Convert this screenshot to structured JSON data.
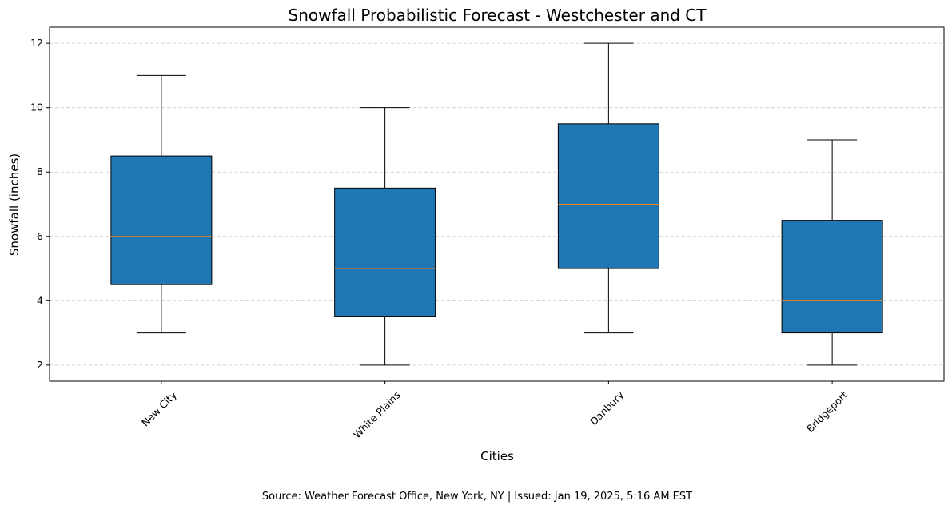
{
  "chart_data": {
    "type": "box",
    "title": "Snowfall Probabilistic Forecast - Westchester and CT",
    "xlabel": "Cities",
    "ylabel": "Snowfall (inches)",
    "ylim": [
      1.5,
      12.5
    ],
    "yticks": [
      2,
      4,
      6,
      8,
      10,
      12
    ],
    "grid": "y-dashed",
    "categories": [
      "New City",
      "White Plains",
      "Danbury",
      "Bridgeport"
    ],
    "boxes": [
      {
        "min": 3,
        "q1": 4.5,
        "median": 6,
        "q3": 8.5,
        "max": 11
      },
      {
        "min": 2,
        "q1": 3.5,
        "median": 5,
        "q3": 7.5,
        "max": 10
      },
      {
        "min": 3,
        "q1": 5,
        "median": 7,
        "q3": 9.5,
        "max": 12
      },
      {
        "min": 2,
        "q1": 3,
        "median": 4,
        "q3": 6.5,
        "max": 9
      }
    ],
    "box_color": "#1f77b4",
    "median_color": "#ff7f0e",
    "source": "Source: Weather Forecast Office, New York, NY | Issued: Jan 19, 2025, 5:16 AM EST"
  }
}
